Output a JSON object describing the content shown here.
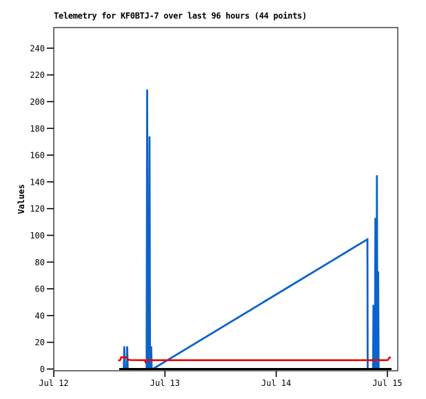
{
  "page": {
    "background": "#ffffff"
  },
  "chart_data": {
    "type": "line",
    "title": "Telemetry for KF0BTJ-7 over last 96 hours (44 points)",
    "ylabel": "Values",
    "xlabel": "",
    "grid": false,
    "legend": false,
    "colors": {
      "border": "#404040",
      "ticks": "#000000",
      "text": "#000000"
    },
    "y_axis": {
      "ticks": [
        0,
        20,
        40,
        60,
        80,
        100,
        120,
        140,
        160,
        180,
        200,
        220,
        240
      ],
      "range": [
        0,
        256
      ]
    },
    "x_axis": {
      "tick_labels": [
        "Jul 12",
        "Jul 13",
        "Jul 14",
        "Jul 15"
      ],
      "tick_positions_days": [
        0,
        1,
        2,
        3
      ],
      "range_days": [
        0,
        3.095
      ]
    },
    "series": [
      {
        "name": "blue-channel",
        "color": "#0B64C8",
        "width": 2.8,
        "points": [
          [
            0.63,
            0
          ],
          [
            0.634,
            17
          ],
          [
            0.639,
            0
          ],
          [
            0.656,
            0
          ],
          [
            0.66,
            17
          ],
          [
            0.665,
            0
          ],
          [
            0.835,
            0
          ],
          [
            0.84,
            209
          ],
          [
            0.845,
            0
          ],
          [
            0.856,
            0
          ],
          [
            0.861,
            174
          ],
          [
            0.866,
            0
          ],
          [
            0.872,
            0
          ],
          [
            0.876,
            17
          ],
          [
            0.881,
            0
          ],
          [
            0.891,
            0
          ],
          [
            2.82,
            97
          ],
          [
            2.823,
            0
          ],
          [
            2.871,
            0
          ],
          [
            2.875,
            48
          ],
          [
            2.879,
            0
          ],
          [
            2.888,
            0
          ],
          [
            2.892,
            113
          ],
          [
            2.896,
            0
          ],
          [
            2.902,
            0
          ],
          [
            2.906,
            145
          ],
          [
            2.91,
            0
          ],
          [
            2.913,
            0
          ],
          [
            2.917,
            73
          ],
          [
            2.921,
            0
          ]
        ]
      },
      {
        "name": "red-channel",
        "color": "#EE0000",
        "width": 2.6,
        "points": [
          [
            0.578,
            6.5
          ],
          [
            0.592,
            6.5
          ],
          [
            0.6,
            7.0
          ],
          [
            0.606,
            8.8
          ],
          [
            0.65,
            8.8
          ],
          [
            0.66,
            8.3
          ],
          [
            0.668,
            7.0
          ],
          [
            0.69,
            6.7
          ],
          [
            0.818,
            6.6
          ],
          [
            0.825,
            5.3
          ],
          [
            0.835,
            6.6
          ],
          [
            3.0,
            6.6
          ],
          [
            3.008,
            7.2
          ],
          [
            3.018,
            8.6
          ],
          [
            3.031,
            8.6
          ]
        ]
      },
      {
        "name": "black-channel",
        "color": "#000000",
        "width": 3,
        "points": [
          [
            0.589,
            0
          ],
          [
            3.037,
            0
          ]
        ]
      }
    ]
  }
}
